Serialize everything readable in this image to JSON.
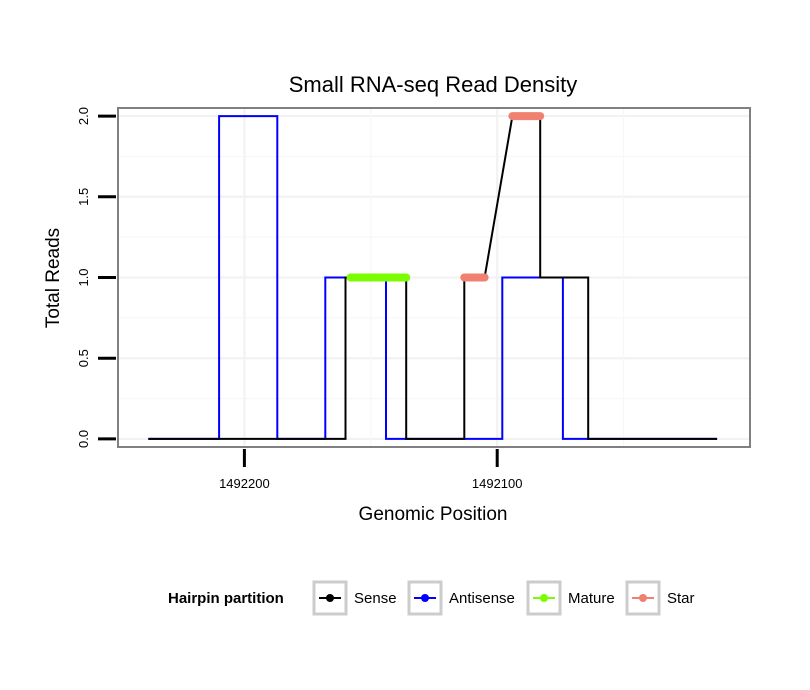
{
  "chart_data": {
    "type": "line",
    "title": "Small RNA-seq Read Density",
    "xlabel": "Genomic Position",
    "ylabel": "Total Reads",
    "x_reversed": true,
    "xlim": [
      1492250,
      1492000
    ],
    "ylim": [
      -0.05,
      2.05
    ],
    "x_ticks": [
      1492200,
      1492100
    ],
    "x_tick_labels": [
      "1492200",
      "1492100"
    ],
    "y_ticks": [
      0,
      0.5,
      1,
      1.5,
      2
    ],
    "y_tick_labels": [
      "0.0",
      "0.5",
      "1.0",
      "1.5",
      "2.0"
    ],
    "grid": true,
    "legend": {
      "title": "Hairpin partition",
      "position": "bottom",
      "entries": [
        {
          "name": "Sense",
          "color": "#000000"
        },
        {
          "name": "Antisense",
          "color": "#0000ff"
        },
        {
          "name": "Mature",
          "color": "#7cfc00"
        },
        {
          "name": "Star",
          "color": "#f08070"
        }
      ]
    },
    "series": [
      {
        "name": "Sense",
        "color": "#000000",
        "x": [
          1492238,
          1492160,
          1492160,
          1492158,
          1492158,
          1492136,
          1492136,
          1492113,
          1492113,
          1492105,
          1492105,
          1492094,
          1492094,
          1492083,
          1492083,
          1492073,
          1492073,
          1492064,
          1492064,
          1492013
        ],
        "y": [
          0,
          0,
          1,
          1,
          1,
          1,
          0,
          0,
          1,
          1,
          1,
          2,
          2,
          2,
          1,
          1,
          1,
          1,
          0,
          0
        ]
      },
      {
        "name": "Antisense",
        "color": "#0000ff",
        "x": [
          1492238,
          1492210,
          1492210,
          1492187,
          1492187,
          1492168,
          1492168,
          1492144,
          1492144,
          1492098,
          1492098,
          1492074,
          1492074,
          1492013
        ],
        "y": [
          0,
          0,
          2,
          2,
          0,
          0,
          1,
          1,
          0,
          0,
          1,
          1,
          0,
          0
        ]
      },
      {
        "name": "Mature",
        "color": "#7cfc00",
        "x": [
          1492158,
          1492136
        ],
        "y": [
          1,
          1
        ]
      },
      {
        "name": "Star",
        "color": "#f08070",
        "segments": [
          {
            "x": [
              1492113,
              1492105
            ],
            "y": [
              1,
              1
            ]
          },
          {
            "x": [
              1492094,
              1492083
            ],
            "y": [
              2,
              2
            ]
          }
        ]
      }
    ]
  }
}
